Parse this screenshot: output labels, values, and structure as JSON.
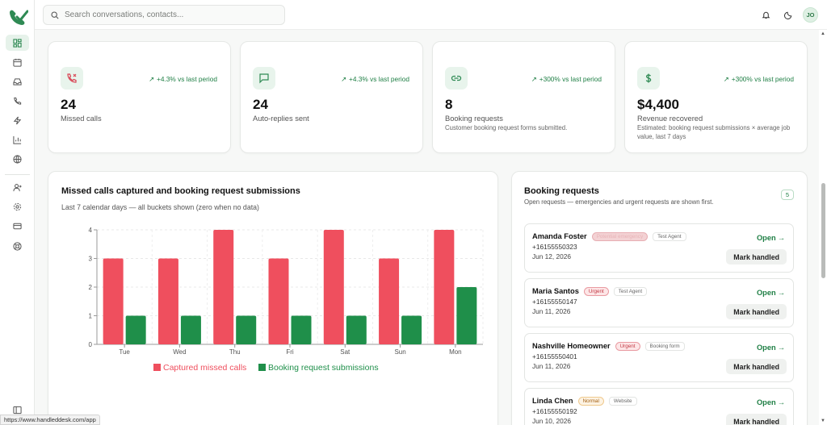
{
  "search": {
    "placeholder": "Search conversations, contacts..."
  },
  "user": {
    "initials": "JO"
  },
  "colors": {
    "brand": "#2f8a54",
    "captured": "#ef4f5e",
    "bookings": "#1f8f4a"
  },
  "sidebar": {
    "items": [
      {
        "icon": "dashboard-icon"
      },
      {
        "icon": "calendar-icon"
      },
      {
        "icon": "inbox-icon"
      },
      {
        "icon": "phone-icon"
      },
      {
        "icon": "lightning-icon"
      },
      {
        "icon": "bar-chart-icon"
      },
      {
        "icon": "globe-icon"
      },
      {
        "icon": "add-user-icon"
      },
      {
        "icon": "settings-icon"
      },
      {
        "icon": "credit-card-icon"
      },
      {
        "icon": "help-icon"
      }
    ]
  },
  "stats": [
    {
      "value": "24",
      "label": "Missed calls",
      "trend": "+4.3% vs last period",
      "desc": "",
      "icon": "missed-call-icon"
    },
    {
      "value": "24",
      "label": "Auto-replies sent",
      "trend": "+4.3% vs last period",
      "desc": "",
      "icon": "message-icon"
    },
    {
      "value": "8",
      "label": "Booking requests",
      "trend": "+300% vs last period",
      "desc": "Customer booking request forms submitted.",
      "icon": "link-icon"
    },
    {
      "value": "$4,400",
      "label": "Revenue recovered",
      "trend": "+300% vs last period",
      "desc": "Estimated: booking request submissions × average job value, last 7 days",
      "icon": "dollar-icon"
    }
  ],
  "chart_data": {
    "type": "bar",
    "title": "Missed calls captured and booking request submissions",
    "subtitle": "Last 7 calendar days — all buckets shown (zero when no data)",
    "categories": [
      "Tue",
      "Wed",
      "Thu",
      "Fri",
      "Sat",
      "Sun",
      "Mon"
    ],
    "series": [
      {
        "name": "Captured missed calls",
        "values": [
          3,
          3,
          4,
          3,
          4,
          3,
          4
        ],
        "color": "#ef4f5e"
      },
      {
        "name": "Booking request submissions",
        "values": [
          1,
          1,
          1,
          1,
          1,
          1,
          2
        ],
        "color": "#1f8f4a"
      }
    ],
    "ylim": [
      0,
      4
    ],
    "yticks": [
      0,
      1,
      2,
      3,
      4
    ],
    "grid": true,
    "legend": "bottom"
  },
  "bookings": {
    "title": "Booking requests",
    "subtitle": "Open requests — emergencies and urgent requests are shown first.",
    "count": "5",
    "open_label": "Open",
    "mark_label": "Mark handled",
    "items": [
      {
        "name": "Amanda Foster",
        "badge": "Potential emergency",
        "badge_type": "emerg",
        "source": "Test Agent",
        "phone": "+16155550323",
        "date": "Jun 12, 2026"
      },
      {
        "name": "Maria Santos",
        "badge": "Urgent",
        "badge_type": "urgent",
        "source": "Test Agent",
        "phone": "+16155550147",
        "date": "Jun 11, 2026"
      },
      {
        "name": "Nashville Homeowner",
        "badge": "Urgent",
        "badge_type": "urgent",
        "source": "Booking form",
        "phone": "+16155550401",
        "date": "Jun 11, 2026"
      },
      {
        "name": "Linda Chen",
        "badge": "Normal",
        "badge_type": "normal",
        "source": "Website",
        "phone": "+16155550192",
        "date": "Jun 10, 2026"
      }
    ]
  },
  "status_url": "https://www.handleddesk.com/app"
}
